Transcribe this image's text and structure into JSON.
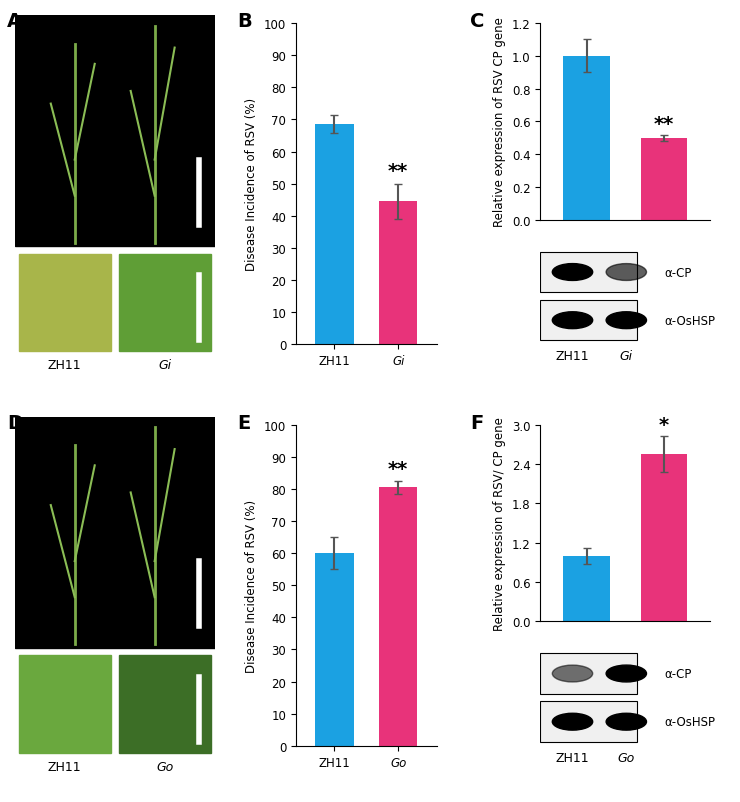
{
  "chart_data": [
    {
      "type": "bar",
      "categories": [
        "ZH11",
        "Gi"
      ],
      "values": [
        68.5,
        44.5
      ],
      "errors": [
        2.8,
        5.5
      ],
      "colors": [
        "#1ba1e2",
        "#e8337a"
      ],
      "ylabel": "Disease Incidence of RSV (%)",
      "ylim": [
        0,
        100
      ],
      "yticks": [
        0,
        10,
        20,
        30,
        40,
        50,
        60,
        70,
        80,
        90,
        100
      ],
      "significance": [
        null,
        "**"
      ]
    },
    {
      "type": "bar",
      "categories": [
        "ZH11",
        "Gi"
      ],
      "values": [
        1.0,
        0.5
      ],
      "errors": [
        0.1,
        0.02
      ],
      "colors": [
        "#1ba1e2",
        "#e8337a"
      ],
      "ylabel": "Relative expression of RSV CP gene",
      "ylim": [
        0,
        1.2
      ],
      "yticks": [
        {
          "value": 0,
          "label": "0.0"
        },
        0.2,
        0.4,
        0.6,
        0.8,
        {
          "value": 1,
          "label": "1.0"
        },
        1.2
      ],
      "significance": [
        null,
        "**"
      ],
      "tick_labels": "y"
    },
    {
      "type": "bar",
      "categories": [
        "ZH11",
        "Go"
      ],
      "values": [
        60,
        80.5
      ],
      "errors": [
        5,
        2
      ],
      "colors": [
        "#1ba1e2",
        "#e8337a"
      ],
      "ylabel": "Disease Incidence of RSV (%)",
      "ylim": [
        0,
        100
      ],
      "yticks": [
        0,
        10,
        20,
        30,
        40,
        50,
        60,
        70,
        80,
        90,
        100
      ],
      "significance": [
        null,
        "**"
      ]
    },
    {
      "type": "bar",
      "categories": [
        "ZH11",
        "Go"
      ],
      "values": [
        1.0,
        2.55
      ],
      "errors": [
        0.12,
        0.28
      ],
      "colors": [
        "#1ba1e2",
        "#e8337a"
      ],
      "ylabel": "Relative expression of RSV/ CP gene",
      "ylim": [
        0,
        3
      ],
      "yticks": [
        {
          "value": 0,
          "label": "0.0"
        },
        0.6,
        1.2,
        1.8,
        2.4,
        {
          "value": 3,
          "label": "3.0"
        }
      ],
      "significance": [
        null,
        "*"
      ],
      "tick_labels": "y"
    }
  ],
  "panel_letters": [
    "A",
    "B",
    "C",
    "D",
    "E",
    "F"
  ],
  "photos": [
    {
      "labels": [
        "ZH11",
        "Gi"
      ]
    },
    {
      "labels": [
        "ZH11",
        "Go"
      ]
    }
  ],
  "blots": [
    {
      "rows": [
        "α-CP",
        "α-OsHSP"
      ]
    },
    {
      "rows": [
        "α-CP",
        "α-OsHSP"
      ]
    }
  ]
}
